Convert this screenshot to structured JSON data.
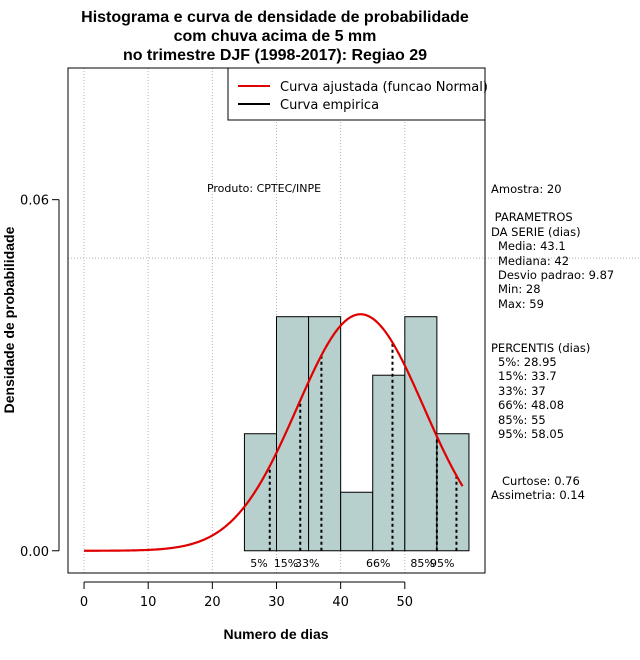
{
  "chart_data": {
    "type": "histogram",
    "title_lines": [
      "Histograma e curva de densidade de probabilidade",
      "com chuva acima de 5 mm",
      "no trimestre DJF (1998-2017): Regiao 29"
    ],
    "xlabel": "Numero de dias",
    "ylabel": "Densidade de probabilidade",
    "xlim": [
      -2.5,
      62.5
    ],
    "ylim": [
      -0.0038,
      0.0825
    ],
    "xticks": [
      0,
      10,
      20,
      30,
      40,
      50
    ],
    "yticks": [
      0.0,
      0.06
    ],
    "ytick_labels": [
      "0.00",
      "0.06"
    ],
    "hgrid": [
      0.05
    ],
    "bins": [
      {
        "x0": 25,
        "x1": 30,
        "density": 0.02
      },
      {
        "x0": 30,
        "x1": 35,
        "density": 0.04
      },
      {
        "x0": 35,
        "x1": 40,
        "density": 0.04
      },
      {
        "x0": 40,
        "x1": 45,
        "density": 0.01
      },
      {
        "x0": 45,
        "x1": 50,
        "density": 0.03
      },
      {
        "x0": 50,
        "x1": 55,
        "density": 0.04
      },
      {
        "x0": 55,
        "x1": 60,
        "density": 0.02
      }
    ],
    "normal_curve": {
      "name": "Curva ajustada (funcao Normal)",
      "mean": 43.1,
      "sd": 9.87,
      "x_from": 0,
      "x_to": 59,
      "color": "#e00000"
    },
    "empirical_curve": {
      "name": "Curva empirica",
      "color": "#000000"
    },
    "percentile_lines": [
      {
        "label": "5%",
        "x": 28.95
      },
      {
        "label": "15%",
        "x": 33.7
      },
      {
        "label": "33%",
        "x": 37
      },
      {
        "label": "66%",
        "x": 48.08
      },
      {
        "label": "85%",
        "x": 55
      },
      {
        "label": "95%",
        "x": 58.05
      }
    ],
    "bar_color": "#b7cfcd",
    "annotation": "Produto: CPTEC/INPE",
    "legend_position": "top-right"
  },
  "side_panel": {
    "sample": "Amostra: 20",
    "params_title_1": " PARAMETROS",
    "params_title_2": "DA SERIE (dias)",
    "params": [
      "Media: 43.1",
      "Mediana: 42",
      "Desvio padrao: 9.87",
      "Min: 28",
      "Max: 59"
    ],
    "percentis_title": "PERCENTIS (dias)",
    "percentis": [
      "5%: 28.95",
      "15%: 33.7",
      "33%: 37",
      "66%: 48.08",
      "85%: 55",
      "95%: 58.05"
    ],
    "kurtosis": "Curtose: 0.76",
    "skewness": "Assimetria: 0.14"
  }
}
